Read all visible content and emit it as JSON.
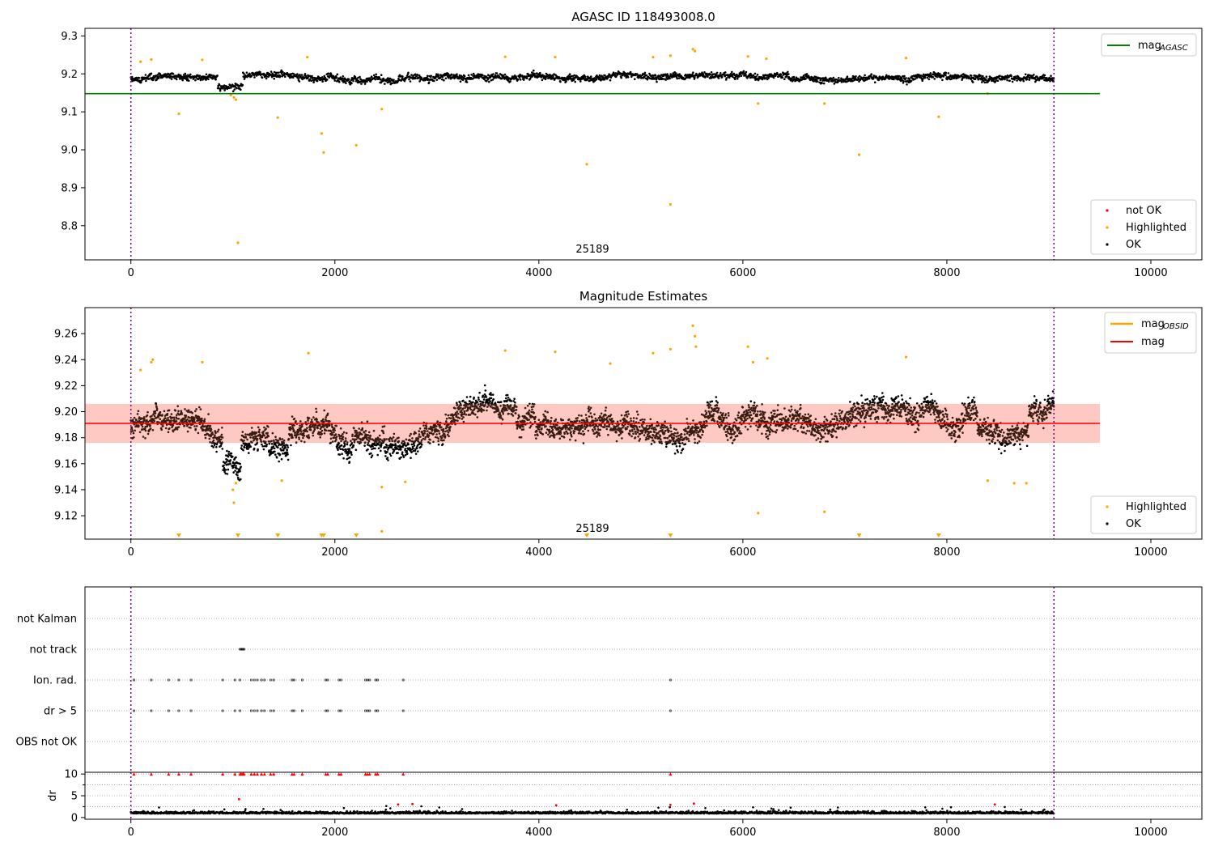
{
  "chart_data": [
    {
      "type": "scatter",
      "title": "AGASC ID 118493008.0",
      "annotation": "25189",
      "xlim": [
        -450,
        10500
      ],
      "ylim": [
        8.71,
        9.32
      ],
      "xticks": [
        "0",
        "2000",
        "4000",
        "6000",
        "8000",
        "10000"
      ],
      "xtick_values": [
        0,
        2000,
        4000,
        6000,
        8000,
        10000
      ],
      "yticks": [
        "8.8",
        "8.9",
        "9.0",
        "9.1",
        "9.2",
        "9.3"
      ],
      "ytick_values": [
        8.8,
        8.9,
        9.0,
        9.1,
        9.2,
        9.3
      ],
      "vlines": [
        0,
        9050
      ],
      "legend_lines": [
        {
          "label": "mag",
          "sub": "AGASC",
          "color": "#008000"
        }
      ],
      "legend_points": [
        {
          "label": "not OK",
          "color": "#ff0000"
        },
        {
          "label": "Highlighted",
          "color": "#ffa500"
        },
        {
          "label": "OK",
          "color": "#000000"
        }
      ],
      "hline": {
        "y": 9.148,
        "x_end": 9500,
        "color": "#008000"
      },
      "ok_series": {
        "x_range": [
          0,
          9050
        ],
        "baseline": 9.19
      },
      "highlighted": [
        [
          470,
          9.095
        ],
        [
          1050,
          8.755
        ],
        [
          1440,
          9.085
        ],
        [
          1870,
          9.043
        ],
        [
          1890,
          8.993
        ],
        [
          2210,
          9.012
        ],
        [
          2460,
          9.107
        ],
        [
          4470,
          8.962
        ],
        [
          5290,
          8.856
        ],
        [
          6150,
          9.122
        ],
        [
          6800,
          9.122
        ],
        [
          7140,
          8.987
        ],
        [
          7920,
          9.087
        ],
        [
          8400,
          9.148
        ],
        [
          95,
          9.232
        ],
        [
          200,
          9.238
        ],
        [
          700,
          9.237
        ],
        [
          1730,
          9.244
        ],
        [
          3670,
          9.245
        ],
        [
          4160,
          9.244
        ],
        [
          5120,
          9.244
        ],
        [
          5290,
          9.248
        ],
        [
          5510,
          9.265
        ],
        [
          5530,
          9.26
        ],
        [
          6050,
          9.246
        ],
        [
          6230,
          9.24
        ],
        [
          7600,
          9.242
        ],
        [
          1010,
          9.138
        ],
        [
          1030,
          9.132
        ],
        [
          980,
          9.144
        ]
      ]
    },
    {
      "type": "scatter",
      "title": "Magnitude Estimates",
      "annotation": "25189",
      "xlim": [
        -450,
        10500
      ],
      "ylim": [
        9.102,
        9.28
      ],
      "xticks": [
        "0",
        "2000",
        "4000",
        "6000",
        "8000",
        "10000"
      ],
      "xtick_values": [
        0,
        2000,
        4000,
        6000,
        8000,
        10000
      ],
      "yticks": [
        "9.12",
        "9.14",
        "9.16",
        "9.18",
        "9.20",
        "9.22",
        "9.24",
        "9.26"
      ],
      "ytick_values": [
        9.12,
        9.14,
        9.16,
        9.18,
        9.2,
        9.22,
        9.24,
        9.26
      ],
      "vlines": [
        0,
        9050
      ],
      "legend_lines": [
        {
          "label": "mag",
          "sub": "OBSID",
          "color": "#ffa500"
        },
        {
          "label": "mag",
          "sub": "",
          "color": "#ff0000"
        }
      ],
      "legend_points": [
        {
          "label": "Highlighted",
          "color": "#ffa500"
        },
        {
          "label": "OK",
          "color": "#000000"
        }
      ],
      "mean": 9.191,
      "band": [
        9.176,
        9.206
      ],
      "band_x_end": 9500,
      "ok_series": {
        "x_range": [
          0,
          9050
        ],
        "baseline": 9.19
      },
      "highlighted": [
        [
          95,
          9.232
        ],
        [
          200,
          9.238
        ],
        [
          215,
          9.24
        ],
        [
          700,
          9.238
        ],
        [
          1010,
          9.13
        ],
        [
          1000,
          9.14
        ],
        [
          1030,
          9.145
        ],
        [
          1480,
          9.147
        ],
        [
          1740,
          9.245
        ],
        [
          2460,
          9.142
        ],
        [
          2460,
          9.108
        ],
        [
          2690,
          9.146
        ],
        [
          3670,
          9.247
        ],
        [
          4160,
          9.246
        ],
        [
          4700,
          9.237
        ],
        [
          5120,
          9.245
        ],
        [
          5290,
          9.248
        ],
        [
          5510,
          9.266
        ],
        [
          5530,
          9.258
        ],
        [
          5540,
          9.25
        ],
        [
          6050,
          9.25
        ],
        [
          6100,
          9.238
        ],
        [
          6240,
          9.241
        ],
        [
          6150,
          9.122
        ],
        [
          6800,
          9.123
        ],
        [
          7600,
          9.242
        ],
        [
          8400,
          9.147
        ],
        [
          8660,
          9.145
        ],
        [
          8780,
          9.145
        ]
      ],
      "below_markers_x": [
        470,
        1050,
        1440,
        1870,
        1890,
        2210,
        4470,
        5290,
        7140,
        7920
      ]
    },
    {
      "type": "event-raster",
      "categories": [
        "not Kalman",
        "not track",
        "Ion. rad.",
        "dr > 5",
        "OBS not OK"
      ],
      "xlim": [
        -450,
        10500
      ],
      "vlines": [
        0,
        9050
      ],
      "events": {
        "not track": [
          1070,
          1080,
          1090,
          1100,
          1110
        ],
        "Ion. rad.": [
          30,
          200,
          370,
          470,
          590,
          900,
          1020,
          1070,
          1180,
          1210,
          1240,
          1280,
          1310,
          1370,
          1400,
          1580,
          1600,
          1680,
          1910,
          1930,
          2040,
          2060,
          2300,
          2320,
          2340,
          2400,
          2420,
          2670,
          5290
        ],
        "dr > 5": [
          30,
          200,
          370,
          470,
          590,
          900,
          1020,
          1070,
          1180,
          1210,
          1240,
          1280,
          1310,
          1370,
          1400,
          1580,
          1600,
          1680,
          1910,
          1930,
          2040,
          2060,
          2300,
          2320,
          2340,
          2400,
          2420,
          2670,
          5290
        ]
      }
    },
    {
      "type": "scatter",
      "ylabel": "dr",
      "xlim": [
        -450,
        10500
      ],
      "ylim": [
        -0.4,
        10.4
      ],
      "xticks": [
        "0",
        "2000",
        "4000",
        "6000",
        "8000",
        "10000"
      ],
      "xtick_values": [
        0,
        2000,
        4000,
        6000,
        8000,
        10000
      ],
      "yticks": [
        "0",
        "5",
        "10"
      ],
      "ytick_values": [
        0,
        5,
        10
      ],
      "vlines": [
        0,
        9050
      ],
      "ok_series": {
        "x_range": [
          0,
          9050
        ],
        "baseline": 0.9
      },
      "clipped_x": [
        30,
        200,
        370,
        470,
        590,
        900,
        1020,
        1070,
        1080,
        1090,
        1100,
        1110,
        1180,
        1210,
        1240,
        1280,
        1310,
        1370,
        1400,
        1580,
        1600,
        1680,
        1910,
        1930,
        2040,
        2060,
        2300,
        2320,
        2340,
        2400,
        2420,
        2670,
        5290
      ],
      "red_points": [
        [
          1060,
          4.2
        ],
        [
          2620,
          3.0
        ],
        [
          2760,
          3.1
        ],
        [
          4170,
          2.8
        ],
        [
          5290,
          2.9
        ],
        [
          5520,
          3.2
        ],
        [
          8470,
          3.0
        ]
      ]
    }
  ]
}
